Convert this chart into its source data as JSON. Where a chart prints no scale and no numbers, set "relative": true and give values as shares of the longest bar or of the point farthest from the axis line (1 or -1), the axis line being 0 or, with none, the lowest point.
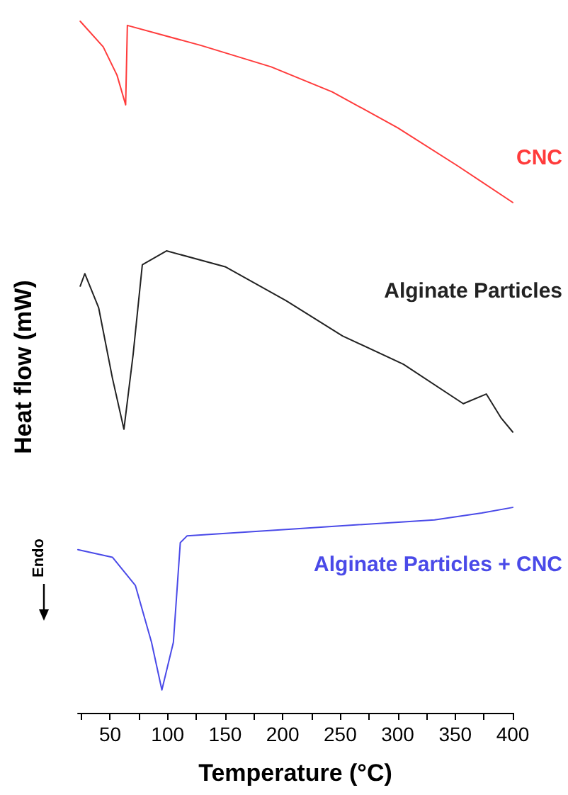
{
  "chart_data": {
    "type": "line",
    "xlabel": "Temperature (°C)",
    "ylabel": "Heat flow (mW)",
    "relative": true,
    "annotations": [
      "Endo"
    ],
    "xlim": [
      22,
      400
    ],
    "xticks": [
      {
        "value": 25,
        "label": null
      },
      50,
      {
        "value": 75,
        "label": null
      },
      100,
      {
        "value": 125,
        "label": null
      },
      150,
      {
        "value": 175,
        "label": null
      },
      200,
      {
        "value": 225,
        "label": null
      },
      250,
      {
        "value": 275,
        "label": null
      },
      300,
      {
        "value": 325,
        "label": null
      },
      350,
      {
        "value": 375,
        "label": null
      },
      400
    ],
    "series": [
      {
        "name": "CNC",
        "color": "#ff3b3b",
        "x": [
          24,
          44,
          56,
          63.5,
          65,
          129,
          190,
          243,
          300,
          352,
          400
        ],
        "values": [
          1.0,
          0.963,
          0.922,
          0.879,
          0.994,
          0.965,
          0.934,
          0.898,
          0.846,
          0.791,
          0.738
        ]
      },
      {
        "name": "Alginate Particles",
        "color": "#222222",
        "x": [
          24,
          28,
          40,
          52,
          62,
          70,
          78,
          99,
          150,
          203,
          252,
          305,
          357,
          377,
          390,
          400
        ],
        "values": [
          0.617,
          0.635,
          0.586,
          0.484,
          0.41,
          0.518,
          0.648,
          0.668,
          0.645,
          0.596,
          0.545,
          0.504,
          0.447,
          0.461,
          0.426,
          0.406
        ]
      },
      {
        "name": "Alginate Particles + CNC",
        "color": "#4a4ae8",
        "x": [
          22,
          52,
          72,
          86,
          95,
          105,
          111,
          117,
          210,
          332,
          373,
          400
        ],
        "values": [
          0.236,
          0.225,
          0.184,
          0.102,
          0.033,
          0.102,
          0.246,
          0.256,
          0.266,
          0.279,
          0.289,
          0.297
        ]
      }
    ]
  }
}
